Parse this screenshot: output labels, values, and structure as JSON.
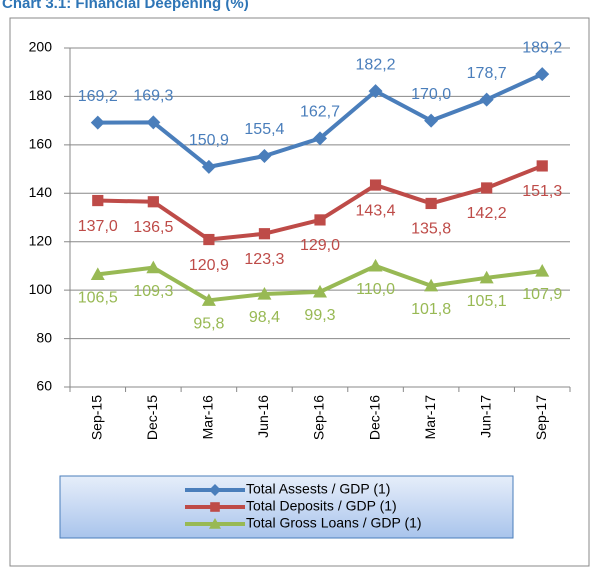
{
  "chart_data": {
    "type": "line",
    "title": "Chart 3.1: Financial Deepening (%)",
    "categories": [
      "Sep-15",
      "Dec-15",
      "Mar-16",
      "Jun-16",
      "Sep-16",
      "Dec-16",
      "Mar-17",
      "Jun-17",
      "Sep-17"
    ],
    "series": [
      {
        "name": "Total Assests / GDP (1)",
        "color": "#4a7ebb",
        "marker": "diamond",
        "values": [
          169.2,
          169.3,
          150.9,
          155.4,
          162.7,
          182.2,
          170.0,
          178.7,
          189.2
        ],
        "value_labels": [
          "169,2",
          "169,3",
          "150,9",
          "155,4",
          "162,7",
          "182,2",
          "170,0",
          "178,7",
          "189,2"
        ]
      },
      {
        "name": "Total Deposits / GDP (1)",
        "color": "#be4b48",
        "marker": "square",
        "values": [
          137.0,
          136.5,
          120.9,
          123.3,
          129.0,
          143.4,
          135.8,
          142.2,
          151.3
        ],
        "value_labels": [
          "137,0",
          "136,5",
          "120,9",
          "123,3",
          "129,0",
          "143,4",
          "135,8",
          "142,2",
          "151,3"
        ]
      },
      {
        "name": "Total Gross Loans / GDP (1)",
        "color": "#98b954",
        "marker": "triangle",
        "values": [
          106.5,
          109.3,
          95.8,
          98.4,
          99.3,
          110.0,
          101.8,
          105.1,
          107.9
        ],
        "value_labels": [
          "106,5",
          "109,3",
          "95,8",
          "98,4",
          "99,3",
          "110,0",
          "101,8",
          "105,1",
          "107,9"
        ]
      }
    ],
    "ylim": [
      60,
      200
    ],
    "yticks": [
      60,
      80,
      100,
      120,
      140,
      160,
      180,
      200
    ],
    "grid": true
  }
}
